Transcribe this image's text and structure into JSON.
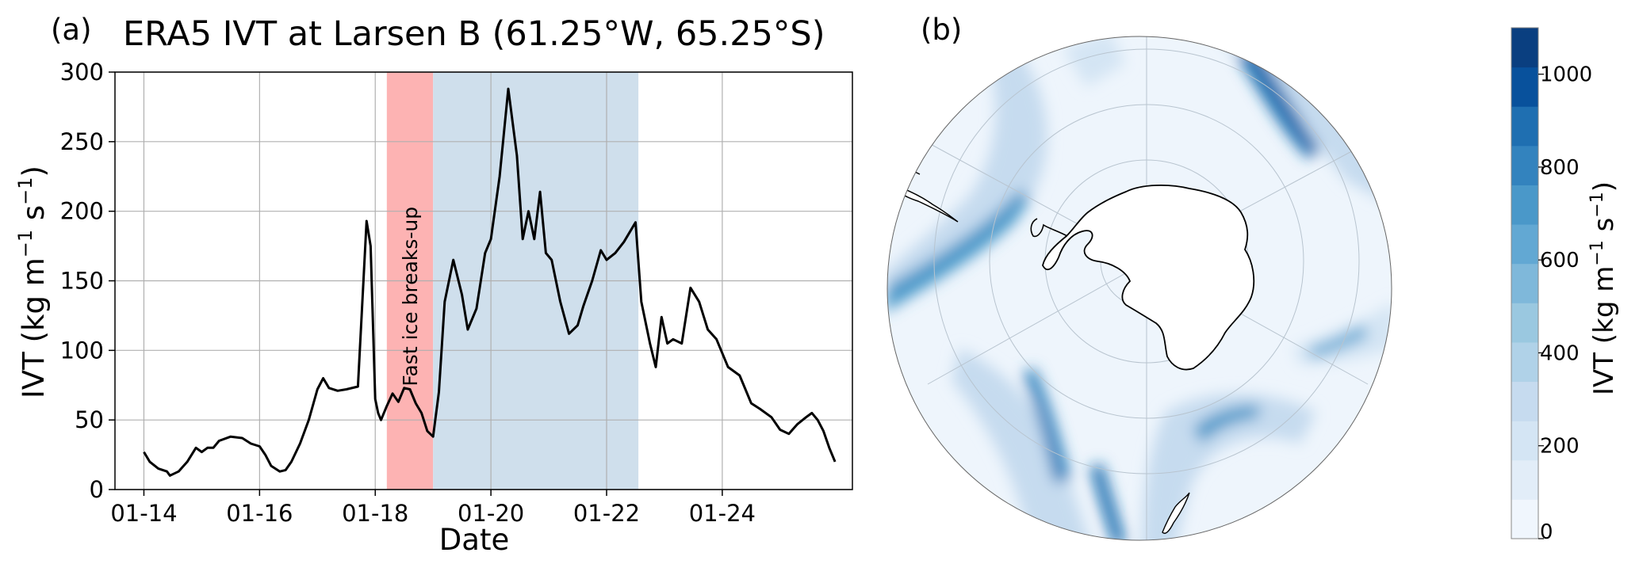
{
  "chart_data": [
    {
      "type": "line",
      "panel_label": "(a)",
      "title": "ERA5 IVT at Larsen B (61.25°W, 65.25°S)",
      "xlabel": "Date",
      "ylabel": "IVT (kg m",
      "ylabel_sup1": "−1",
      "ylabel_mid": " s",
      "ylabel_sup2": "−1",
      "ylabel_end": ")",
      "x_unit": "days of January",
      "xlim": [
        13.5,
        26.25
      ],
      "ylim": [
        0,
        300
      ],
      "x_ticks": [
        14,
        16,
        18,
        20,
        22,
        24
      ],
      "x_tick_labels": [
        "01-14",
        "01-16",
        "01-18",
        "01-20",
        "01-22",
        "01-24"
      ],
      "y_ticks": [
        0,
        50,
        100,
        150,
        200,
        250,
        300
      ],
      "y_tick_labels": [
        "0",
        "50",
        "100",
        "150",
        "200",
        "250",
        "300"
      ],
      "grid": true,
      "line_color": "#000000",
      "shaded_regions": [
        {
          "x0": 18.2,
          "x1": 19.0,
          "color": "#fdb3b3",
          "label": "Fast ice  breaks-up"
        },
        {
          "x0": 19.0,
          "x1": 22.55,
          "color": "#cfdfec"
        }
      ],
      "series": [
        {
          "x": [
            14.0,
            14.1,
            14.25,
            14.4,
            14.45,
            14.5,
            14.6,
            14.75,
            14.9,
            15.0,
            15.1,
            15.2,
            15.3,
            15.5,
            15.7,
            15.85,
            16.0,
            16.1,
            16.2,
            16.35,
            16.45,
            16.55,
            16.7,
            16.85,
            17.0,
            17.1,
            17.2,
            17.35,
            17.5,
            17.7,
            17.85,
            17.92,
            18.0,
            18.05,
            18.1,
            18.2,
            18.3,
            18.4,
            18.5,
            18.6,
            18.7,
            18.8,
            18.9,
            19.0,
            19.1,
            19.2,
            19.35,
            19.5,
            19.6,
            19.75,
            19.9,
            20.0,
            20.15,
            20.3,
            20.45,
            20.55,
            20.65,
            20.75,
            20.85,
            20.95,
            21.05,
            21.2,
            21.35,
            21.5,
            21.6,
            21.75,
            21.9,
            22.0,
            22.15,
            22.3,
            22.5,
            22.6,
            22.75,
            22.85,
            22.95,
            23.05,
            23.15,
            23.3,
            23.45,
            23.6,
            23.75,
            23.9,
            24.1,
            24.3,
            24.5,
            24.65,
            24.85,
            25.0,
            25.15,
            25.3,
            25.45,
            25.55,
            25.65,
            25.75,
            25.85,
            25.95
          ],
          "y": [
            27,
            20,
            15,
            13,
            10,
            11,
            13,
            20,
            30,
            27,
            30,
            30,
            35,
            38,
            37,
            33,
            31,
            25,
            17,
            13,
            14,
            20,
            33,
            50,
            72,
            80,
            73,
            71,
            72,
            74,
            193,
            175,
            65,
            55,
            50,
            60,
            69,
            63,
            73,
            72,
            62,
            55,
            42,
            38,
            70,
            135,
            165,
            140,
            115,
            130,
            170,
            180,
            225,
            288,
            240,
            180,
            200,
            180,
            214,
            170,
            165,
            135,
            112,
            118,
            132,
            150,
            172,
            165,
            170,
            178,
            192,
            135,
            105,
            88,
            124,
            105,
            108,
            105,
            145,
            135,
            115,
            108,
            88,
            82,
            62,
            58,
            52,
            43,
            40,
            47,
            52,
            55,
            50,
            42,
            30,
            20
          ]
        }
      ]
    },
    {
      "type": "heatmap",
      "panel_label": "(b)",
      "colorbar_label": "IVT (kg m",
      "colorbar_sup1": "−1",
      "colorbar_mid": " s",
      "colorbar_sup2": "−1",
      "colorbar_end": ")",
      "colorbar_range": [
        0,
        1100
      ],
      "colorbar_ticks": [
        0,
        200,
        400,
        600,
        800,
        1000
      ],
      "colorbar_tick_labels": [
        "0",
        "200",
        "400",
        "600",
        "800",
        "1000"
      ],
      "colorbar_colors": [
        "#f0f6fd",
        "#e2edf8",
        "#d4e5f4",
        "#c6dbef",
        "#b0d2e8",
        "#9ac8e0",
        "#7fb8da",
        "#62a8d3",
        "#4a98c9",
        "#3383be",
        "#1f6fb1",
        "#08519c",
        "#0a3f80"
      ]
    }
  ]
}
